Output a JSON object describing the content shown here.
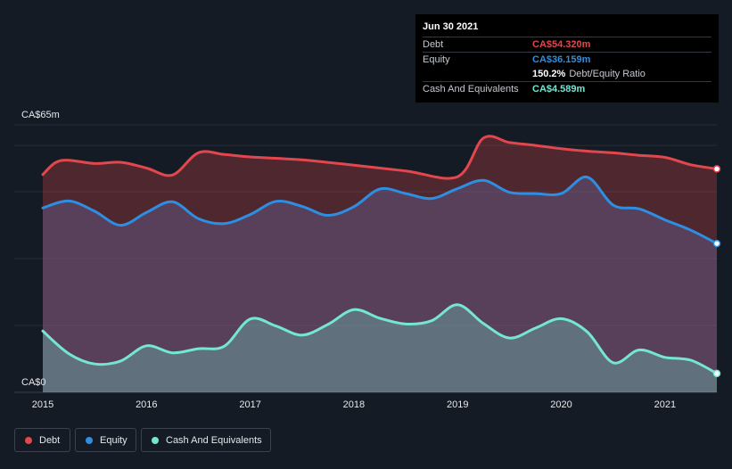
{
  "chart_data": {
    "type": "area",
    "x_labels": [
      "2015",
      "2016",
      "2017",
      "2018",
      "2019",
      "2020",
      "2021"
    ],
    "y_tick_labels": [
      "CA$65m",
      "CA$0"
    ],
    "ylim": [
      0,
      65
    ],
    "x_range": [
      2015.0,
      2021.5
    ],
    "series": [
      {
        "name": "Debt",
        "color": "#e2474d",
        "points": [
          [
            2015.0,
            52.9
          ],
          [
            2015.12,
            55.8
          ],
          [
            2015.25,
            56.4
          ],
          [
            2015.5,
            55.6
          ],
          [
            2015.75,
            55.9
          ],
          [
            2016.0,
            54.5
          ],
          [
            2016.25,
            52.8
          ],
          [
            2016.5,
            58.2
          ],
          [
            2016.75,
            57.8
          ],
          [
            2017.0,
            57.2
          ],
          [
            2017.5,
            56.5
          ],
          [
            2018.0,
            55.2
          ],
          [
            2018.5,
            53.8
          ],
          [
            2019.0,
            52.4
          ],
          [
            2019.25,
            61.8
          ],
          [
            2019.5,
            60.7
          ],
          [
            2019.75,
            60.0
          ],
          [
            2020.0,
            59.2
          ],
          [
            2020.25,
            58.6
          ],
          [
            2020.5,
            58.2
          ],
          [
            2020.75,
            57.6
          ],
          [
            2021.0,
            57.1
          ],
          [
            2021.25,
            55.3
          ],
          [
            2021.5,
            54.3
          ]
        ]
      },
      {
        "name": "Equity",
        "color": "#2d8ee2",
        "points": [
          [
            2015.0,
            44.8
          ],
          [
            2015.25,
            46.5
          ],
          [
            2015.5,
            44.0
          ],
          [
            2015.75,
            40.6
          ],
          [
            2016.0,
            43.7
          ],
          [
            2016.25,
            46.3
          ],
          [
            2016.5,
            42.2
          ],
          [
            2016.75,
            41.0
          ],
          [
            2017.0,
            43.2
          ],
          [
            2017.25,
            46.4
          ],
          [
            2017.5,
            45.2
          ],
          [
            2017.75,
            43.0
          ],
          [
            2018.0,
            45.1
          ],
          [
            2018.25,
            49.4
          ],
          [
            2018.5,
            48.3
          ],
          [
            2018.75,
            47.1
          ],
          [
            2019.0,
            49.5
          ],
          [
            2019.25,
            51.5
          ],
          [
            2019.5,
            48.6
          ],
          [
            2019.75,
            48.3
          ],
          [
            2020.0,
            48.3
          ],
          [
            2020.25,
            52.3
          ],
          [
            2020.5,
            45.5
          ],
          [
            2020.75,
            44.6
          ],
          [
            2021.0,
            41.9
          ],
          [
            2021.25,
            39.4
          ],
          [
            2021.5,
            36.159
          ]
        ]
      },
      {
        "name": "Cash And Equivalents",
        "color": "#74e6d2",
        "points": [
          [
            2015.0,
            14.9
          ],
          [
            2015.25,
            9.4
          ],
          [
            2015.5,
            6.9
          ],
          [
            2015.75,
            7.6
          ],
          [
            2016.0,
            11.3
          ],
          [
            2016.25,
            9.6
          ],
          [
            2016.5,
            10.6
          ],
          [
            2016.75,
            11.2
          ],
          [
            2017.0,
            17.8
          ],
          [
            2017.25,
            16.1
          ],
          [
            2017.5,
            13.9
          ],
          [
            2017.75,
            16.5
          ],
          [
            2018.0,
            20.1
          ],
          [
            2018.25,
            18.0
          ],
          [
            2018.5,
            16.6
          ],
          [
            2018.75,
            17.4
          ],
          [
            2019.0,
            21.3
          ],
          [
            2019.25,
            16.7
          ],
          [
            2019.5,
            13.2
          ],
          [
            2019.75,
            15.6
          ],
          [
            2020.0,
            17.9
          ],
          [
            2020.25,
            14.7
          ],
          [
            2020.5,
            7.2
          ],
          [
            2020.75,
            10.3
          ],
          [
            2021.0,
            8.5
          ],
          [
            2021.25,
            7.8
          ],
          [
            2021.5,
            4.589
          ]
        ]
      }
    ]
  },
  "tooltip": {
    "date": "Jun 30 2021",
    "debt_label": "Debt",
    "debt_value": "CA$54.320m",
    "equity_label": "Equity",
    "equity_value": "CA$36.159m",
    "ratio_value": "150.2%",
    "ratio_label": "Debt/Equity Ratio",
    "cash_label": "Cash And Equivalents",
    "cash_value": "CA$4.589m"
  },
  "legend": {
    "debt": "Debt",
    "equity": "Equity",
    "cash": "Cash And Equivalents"
  },
  "colors": {
    "debt": "#e2474d",
    "equity": "#2d8ee2",
    "cash": "#74e6d2"
  }
}
